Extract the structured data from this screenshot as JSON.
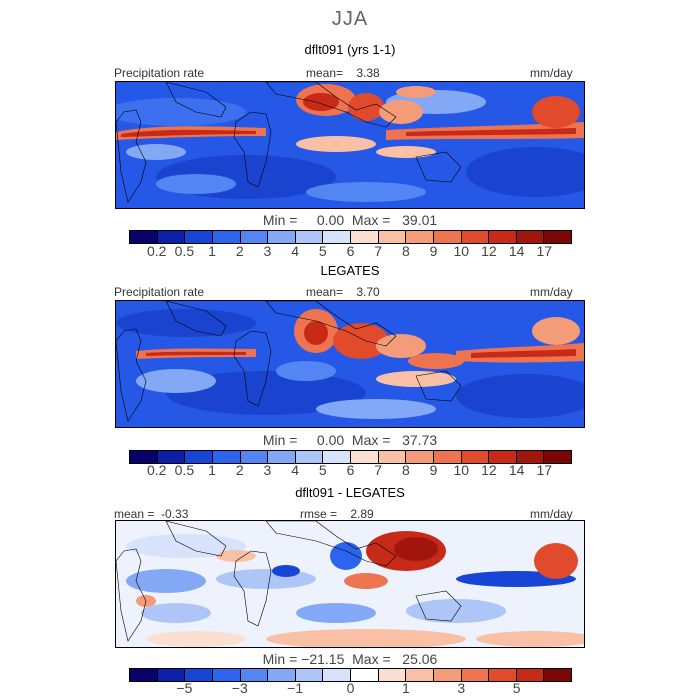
{
  "season": "JJA",
  "palette_abs": [
    "#08006b",
    "#0c1fa8",
    "#1745d6",
    "#2d64ee",
    "#5486f3",
    "#83a8f5",
    "#adc6f7",
    "#d6e3fa",
    "#fbe0d2",
    "#f9c0a6",
    "#f49b7a",
    "#ee7451",
    "#e24a2c",
    "#c72a17",
    "#a2150c",
    "#7a0606"
  ],
  "palette_diff": [
    "#08006b",
    "#0c1fa8",
    "#1745d6",
    "#2d64ee",
    "#5486f3",
    "#83a8f5",
    "#adc6f7",
    "#d6e3fa",
    "#ffffff",
    "#fbe0d2",
    "#f9c0a6",
    "#f49b7a",
    "#ee7451",
    "#e24a2c",
    "#c72a17",
    "#7a0606"
  ],
  "panels": [
    {
      "title": "dflt091 (yrs 1-1)",
      "left_label": "Precipitation rate",
      "center_label": "mean=    3.38",
      "right_label": "mm/day",
      "minmax": "Min =     0.00  Max =   39.01",
      "ticks": [
        "0.2",
        "0.5",
        "1",
        "2",
        "3",
        "4",
        "5",
        "6",
        "7",
        "8",
        "9",
        "10",
        "12",
        "14",
        "17"
      ]
    },
    {
      "title": "LEGATES",
      "left_label": "Precipitation rate",
      "center_label": "mean=    3.70",
      "right_label": "mm/day",
      "minmax": "Min =     0.00  Max =   37.73",
      "ticks": [
        "0.2",
        "0.5",
        "1",
        "2",
        "3",
        "4",
        "5",
        "6",
        "7",
        "8",
        "9",
        "10",
        "12",
        "14",
        "17"
      ]
    },
    {
      "title": "dflt091 - LEGATES",
      "left_label": "mean =  -0.33",
      "center_label": "rmse =    2.89",
      "right_label": "mm/day",
      "minmax": "Min = −21.15  Max =   25.06",
      "ticks": [
        "−5",
        "−3",
        "−1",
        "0",
        "1",
        "3",
        "5"
      ]
    }
  ]
}
